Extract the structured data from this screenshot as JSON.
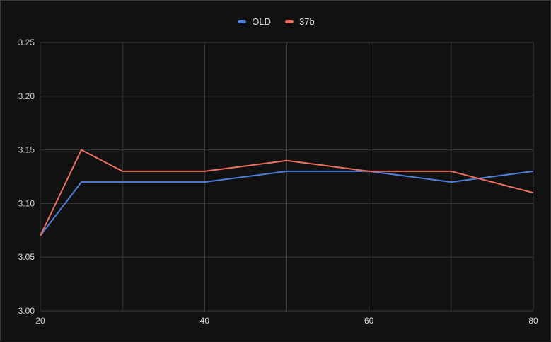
{
  "chart_data": {
    "type": "line",
    "title": "",
    "xlabel": "",
    "ylabel": "",
    "x": [
      20,
      25,
      30,
      40,
      50,
      60,
      70,
      80
    ],
    "xlim": [
      20,
      80
    ],
    "ylim": [
      3.0,
      3.25
    ],
    "x_ticks": [
      "20",
      "40",
      "60",
      "80"
    ],
    "x_tick_values": [
      20,
      40,
      60,
      80
    ],
    "x_grid_values": [
      20,
      30,
      40,
      50,
      60,
      70,
      80
    ],
    "y_ticks": [
      "3.00",
      "3.05",
      "3.10",
      "3.15",
      "3.20",
      "3.25"
    ],
    "y_tick_values": [
      3.0,
      3.05,
      3.1,
      3.15,
      3.2,
      3.25
    ],
    "grid": true,
    "legend_position": "top-center",
    "series": [
      {
        "name": "OLD",
        "color": "#4f7fdc",
        "values": [
          3.07,
          3.12,
          3.12,
          3.12,
          3.13,
          3.13,
          3.12,
          3.13
        ]
      },
      {
        "name": "37b",
        "color": "#ee6f61",
        "values": [
          3.07,
          3.15,
          3.13,
          3.13,
          3.14,
          3.13,
          3.13,
          3.11
        ]
      }
    ]
  }
}
